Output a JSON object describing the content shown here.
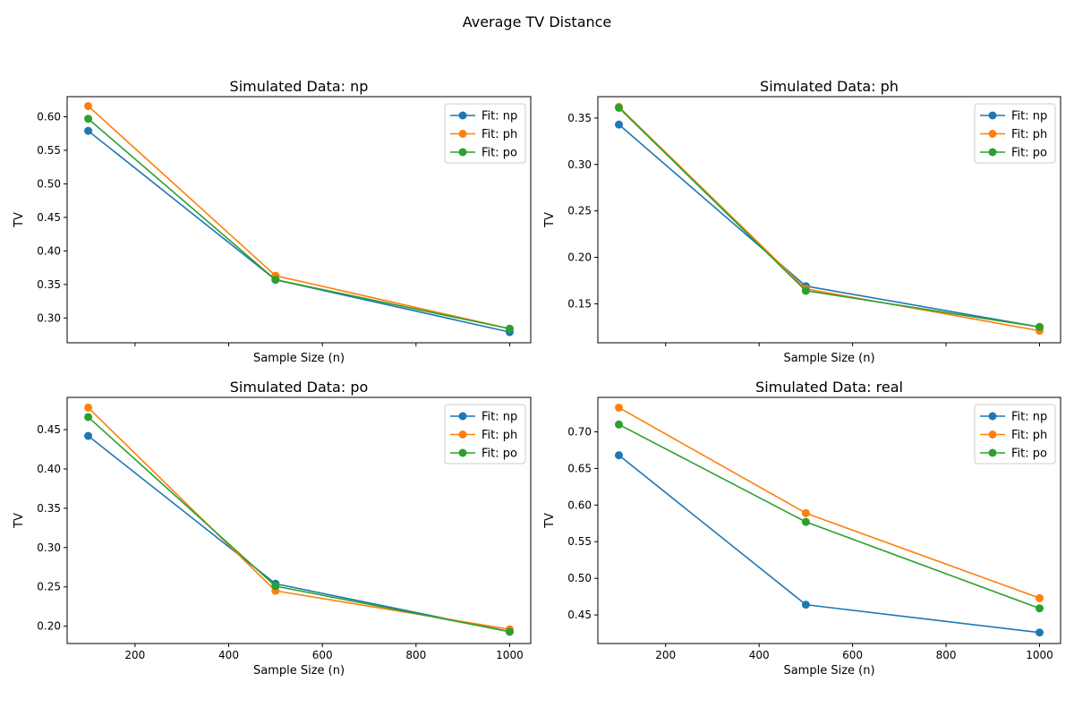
{
  "figure": {
    "title": "Average TV Distance"
  },
  "chart_data": [
    {
      "type": "line",
      "title": "Simulated Data: np",
      "xlabel": "Sample Size (n)",
      "ylabel": "TV",
      "x": [
        100,
        500,
        1000
      ],
      "xlim": [
        55,
        1045
      ],
      "xticks": [
        200,
        400,
        600,
        800,
        1000
      ],
      "show_xtick_labels": false,
      "ylim": [
        0.263,
        0.63
      ],
      "yticks": [
        0.3,
        0.35,
        0.4,
        0.45,
        0.5,
        0.55,
        0.6
      ],
      "ytick_labels": [
        "0.30",
        "0.35",
        "0.40",
        "0.45",
        "0.50",
        "0.55",
        "0.60"
      ],
      "grid": false,
      "legend": "upper right",
      "series": [
        {
          "name": "Fit: np",
          "color": "#1f77b4",
          "values": [
            0.579,
            0.357,
            0.279
          ]
        },
        {
          "name": "Fit: ph",
          "color": "#ff7f0e",
          "values": [
            0.616,
            0.363,
            0.284
          ]
        },
        {
          "name": "Fit: po",
          "color": "#2ca02c",
          "values": [
            0.597,
            0.357,
            0.284
          ]
        }
      ]
    },
    {
      "type": "line",
      "title": "Simulated Data: ph",
      "xlabel": "Sample Size (n)",
      "ylabel": "TV",
      "x": [
        100,
        500,
        1000
      ],
      "xlim": [
        55,
        1045
      ],
      "xticks": [
        200,
        400,
        600,
        800,
        1000
      ],
      "show_xtick_labels": false,
      "ylim": [
        0.108,
        0.373
      ],
      "yticks": [
        0.15,
        0.2,
        0.25,
        0.3,
        0.35
      ],
      "ytick_labels": [
        "0.15",
        "0.20",
        "0.25",
        "0.30",
        "0.35"
      ],
      "grid": false,
      "legend": "upper right",
      "series": [
        {
          "name": "Fit: np",
          "color": "#1f77b4",
          "values": [
            0.343,
            0.169,
            0.125
          ]
        },
        {
          "name": "Fit: ph",
          "color": "#ff7f0e",
          "values": [
            0.362,
            0.166,
            0.121
          ]
        },
        {
          "name": "Fit: po",
          "color": "#2ca02c",
          "values": [
            0.361,
            0.164,
            0.125
          ]
        }
      ]
    },
    {
      "type": "line",
      "title": "Simulated Data: po",
      "xlabel": "Sample Size (n)",
      "ylabel": "TV",
      "x": [
        100,
        500,
        1000
      ],
      "xlim": [
        55,
        1045
      ],
      "xticks": [
        200,
        400,
        600,
        800,
        1000
      ],
      "xtick_labels": [
        "200",
        "400",
        "600",
        "800",
        "1000"
      ],
      "show_xtick_labels": true,
      "ylim": [
        0.178,
        0.491
      ],
      "yticks": [
        0.2,
        0.25,
        0.3,
        0.35,
        0.4,
        0.45
      ],
      "ytick_labels": [
        "0.20",
        "0.25",
        "0.30",
        "0.35",
        "0.40",
        "0.45"
      ],
      "grid": false,
      "legend": "upper right",
      "series": [
        {
          "name": "Fit: np",
          "color": "#1f77b4",
          "values": [
            0.442,
            0.254,
            0.193
          ]
        },
        {
          "name": "Fit: ph",
          "color": "#ff7f0e",
          "values": [
            0.478,
            0.245,
            0.196
          ]
        },
        {
          "name": "Fit: po",
          "color": "#2ca02c",
          "values": [
            0.466,
            0.251,
            0.193
          ]
        }
      ]
    },
    {
      "type": "line",
      "title": "Simulated Data: real",
      "xlabel": "Sample Size (n)",
      "ylabel": "TV",
      "x": [
        100,
        500,
        1000
      ],
      "xlim": [
        55,
        1045
      ],
      "xticks": [
        200,
        400,
        600,
        800,
        1000
      ],
      "xtick_labels": [
        "200",
        "400",
        "600",
        "800",
        "1000"
      ],
      "show_xtick_labels": true,
      "ylim": [
        0.411,
        0.747
      ],
      "yticks": [
        0.45,
        0.5,
        0.55,
        0.6,
        0.65,
        0.7
      ],
      "ytick_labels": [
        "0.45",
        "0.50",
        "0.55",
        "0.60",
        "0.65",
        "0.70"
      ],
      "grid": false,
      "legend": "upper right",
      "series": [
        {
          "name": "Fit: np",
          "color": "#1f77b4",
          "values": [
            0.668,
            0.464,
            0.426
          ]
        },
        {
          "name": "Fit: ph",
          "color": "#ff7f0e",
          "values": [
            0.733,
            0.589,
            0.473
          ]
        },
        {
          "name": "Fit: po",
          "color": "#2ca02c",
          "values": [
            0.71,
            0.577,
            0.459
          ]
        }
      ]
    }
  ]
}
